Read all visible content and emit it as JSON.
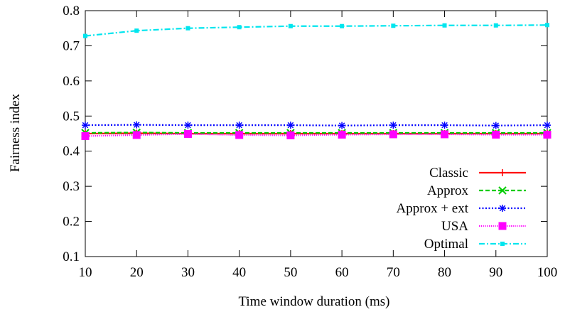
{
  "chart_data": {
    "type": "line",
    "title": "",
    "xlabel": "Time window duration (ms)",
    "ylabel": "Fairness index",
    "xlim": [
      10,
      100
    ],
    "ylim": [
      0.1,
      0.8
    ],
    "xticks": [
      10,
      20,
      30,
      40,
      50,
      60,
      70,
      80,
      90,
      100
    ],
    "yticks": [
      0.1,
      0.2,
      0.3,
      0.4,
      0.5,
      0.6,
      0.7,
      0.8
    ],
    "grid": false,
    "legend_position": "bottom-right",
    "x": [
      10,
      20,
      30,
      40,
      50,
      60,
      70,
      80,
      90,
      100
    ],
    "series": [
      {
        "name": "Classic",
        "color": "#ff0000",
        "marker": "plus",
        "dash": "solid",
        "values": [
          0.45,
          0.451,
          0.45,
          0.45,
          0.45,
          0.45,
          0.45,
          0.45,
          0.45,
          0.45
        ]
      },
      {
        "name": "Approx",
        "color": "#00cc00",
        "marker": "x",
        "dash": "dashed",
        "values": [
          0.452,
          0.453,
          0.452,
          0.452,
          0.452,
          0.452,
          0.452,
          0.452,
          0.452,
          0.452
        ]
      },
      {
        "name": "Approx + ext",
        "color": "#0000ff",
        "marker": "star",
        "dash": "dotted",
        "values": [
          0.474,
          0.475,
          0.474,
          0.474,
          0.474,
          0.473,
          0.474,
          0.474,
          0.473,
          0.474
        ]
      },
      {
        "name": "USA",
        "color": "#ff00ff",
        "marker": "square",
        "dash": "fine-dotted",
        "values": [
          0.443,
          0.446,
          0.449,
          0.446,
          0.445,
          0.447,
          0.448,
          0.448,
          0.447,
          0.447
        ]
      },
      {
        "name": "Optimal",
        "color": "#00e5ee",
        "marker": "filled-square",
        "dash": "dash-dot",
        "values": [
          0.728,
          0.743,
          0.75,
          0.753,
          0.756,
          0.756,
          0.757,
          0.758,
          0.758,
          0.759
        ]
      }
    ]
  }
}
